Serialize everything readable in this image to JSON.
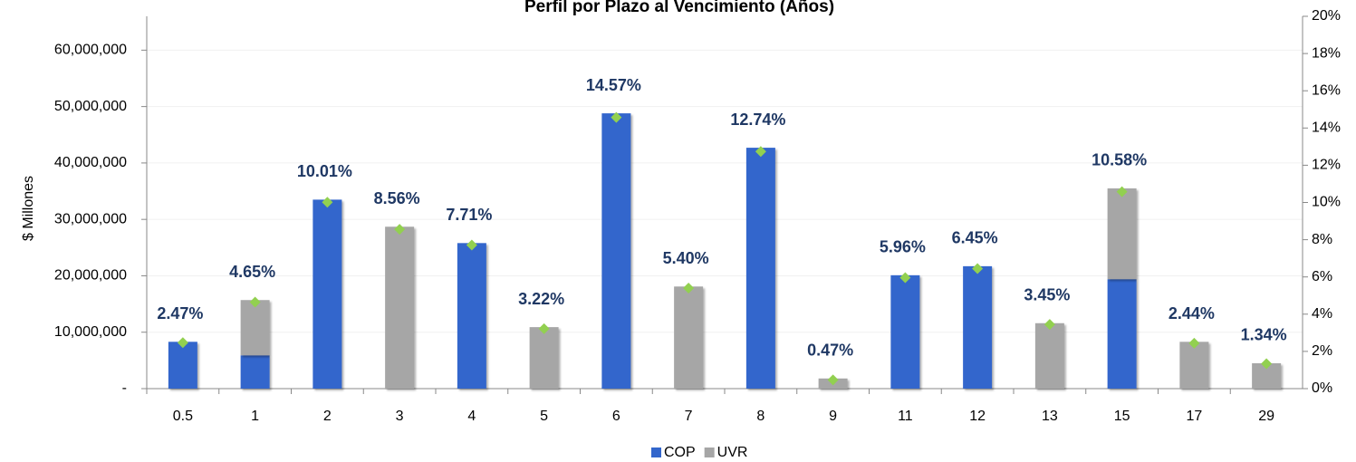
{
  "chart_data": {
    "type": "bar",
    "stacked": true,
    "title": "Perfil por Plazo al Vencimiento (Años)",
    "y_label": "$ Millones",
    "categories": [
      "0.5",
      "1",
      "2",
      "3",
      "4",
      "5",
      "6",
      "7",
      "8",
      "9",
      "11",
      "12",
      "13",
      "15",
      "17",
      "29"
    ],
    "series": [
      {
        "name": "COP",
        "color": "#3366cc",
        "values": [
          8300000,
          5900000,
          33500000,
          0,
          25800000,
          0,
          48800000,
          0,
          42700000,
          0,
          20100000,
          21700000,
          0,
          19400000,
          0,
          0
        ]
      },
      {
        "name": "UVR",
        "color": "#a6a6a6",
        "values": [
          0,
          9800000,
          0,
          28700000,
          0,
          10900000,
          0,
          18100000,
          0,
          1800000,
          0,
          0,
          11600000,
          16100000,
          8300000,
          4500000
        ]
      },
      {
        "axis": "y2",
        "marker": "diamond",
        "color": "#92d050",
        "values": [
          2.47,
          4.65,
          10.01,
          8.56,
          7.71,
          3.22,
          14.57,
          5.4,
          12.74,
          0.47,
          5.96,
          6.45,
          3.45,
          10.58,
          2.44,
          1.34
        ],
        "value_labels": [
          "2.47%",
          "4.65%",
          "10.01%",
          "8.56%",
          "7.71%",
          "3.22%",
          "14.57%",
          "5.40%",
          "12.74%",
          "0.47%",
          "5.96%",
          "6.45%",
          "3.45%",
          "10.58%",
          "2.44%",
          "1.34%"
        ]
      }
    ],
    "ylim": [
      0,
      66000000
    ],
    "yticks": [
      {
        "value": 0,
        "label": "-"
      },
      {
        "value": 10000000,
        "label": "10,000,000"
      },
      {
        "value": 20000000,
        "label": "20,000,000"
      },
      {
        "value": 30000000,
        "label": "30,000,000"
      },
      {
        "value": 40000000,
        "label": "40,000,000"
      },
      {
        "value": 50000000,
        "label": "50,000,000"
      },
      {
        "value": 60000000,
        "label": "60,000,000"
      }
    ],
    "y2lim": [
      0,
      20
    ],
    "y2ticks": [
      {
        "value": 0,
        "label": "0%"
      },
      {
        "value": 2,
        "label": "2%"
      },
      {
        "value": 4,
        "label": "4%"
      },
      {
        "value": 6,
        "label": "6%"
      },
      {
        "value": 8,
        "label": "8%"
      },
      {
        "value": 10,
        "label": "10%"
      },
      {
        "value": 12,
        "label": "12%"
      },
      {
        "value": 14,
        "label": "14%"
      },
      {
        "value": 16,
        "label": "16%"
      },
      {
        "value": 18,
        "label": "18%"
      },
      {
        "value": 20,
        "label": "20%"
      }
    ],
    "grid": true,
    "legend": "bottom"
  }
}
